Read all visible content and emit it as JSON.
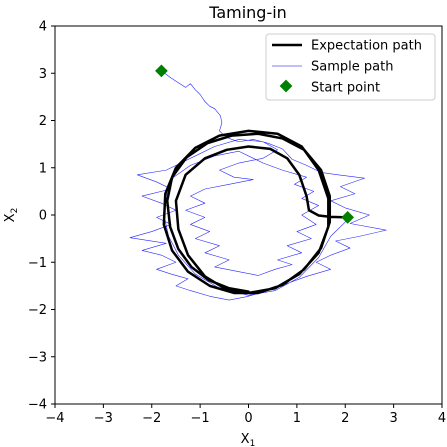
{
  "chart_data": {
    "type": "line",
    "title": "Taming-in",
    "xlabel": "X",
    "xlabel_sub": "1",
    "ylabel": "X",
    "ylabel_sub": "2",
    "xlim": [
      -4,
      4
    ],
    "ylim": [
      -4,
      4
    ],
    "xticks": [
      -4,
      -3,
      -2,
      -1,
      0,
      1,
      2,
      3,
      4
    ],
    "yticks": [
      -4,
      -3,
      -2,
      -1,
      0,
      1,
      2,
      3,
      4
    ],
    "xtick_labels": [
      "−4",
      "−3",
      "−2",
      "−1",
      "0",
      "1",
      "2",
      "3",
      "4"
    ],
    "ytick_labels": [
      "−4",
      "−3",
      "−2",
      "−1",
      "0",
      "1",
      "2",
      "3",
      "4"
    ],
    "grid": false,
    "legend_position": "top-right",
    "colors": {
      "expectation": "#000000",
      "sample": "#0000ff",
      "start": "#008000"
    },
    "series": [
      {
        "name": "Expectation path",
        "style": "solid-thick",
        "points": [
          [
            2.05,
            -0.05
          ],
          [
            1.7,
            -0.04
          ],
          [
            1.45,
            -0.01
          ],
          [
            1.25,
            0.1
          ],
          [
            1.2,
            0.4
          ],
          [
            1.05,
            0.85
          ],
          [
            0.8,
            1.2
          ],
          [
            0.45,
            1.4
          ],
          [
            0.0,
            1.45
          ],
          [
            -0.45,
            1.38
          ],
          [
            -0.9,
            1.2
          ],
          [
            -1.3,
            0.85
          ],
          [
            -1.5,
            0.3
          ],
          [
            -1.45,
            -0.3
          ],
          [
            -1.25,
            -0.85
          ],
          [
            -0.9,
            -1.3
          ],
          [
            -0.45,
            -1.58
          ],
          [
            0.0,
            -1.65
          ],
          [
            0.55,
            -1.55
          ],
          [
            1.05,
            -1.25
          ],
          [
            1.45,
            -0.8
          ],
          [
            1.65,
            -0.25
          ],
          [
            1.65,
            0.35
          ],
          [
            1.45,
            0.95
          ],
          [
            1.1,
            1.45
          ],
          [
            0.6,
            1.72
          ],
          [
            0.0,
            1.78
          ],
          [
            -0.6,
            1.68
          ],
          [
            -1.1,
            1.42
          ],
          [
            -1.5,
            1.0
          ],
          [
            -1.72,
            0.45
          ],
          [
            -1.75,
            -0.2
          ],
          [
            -1.58,
            -0.75
          ],
          [
            -1.25,
            -1.2
          ],
          [
            -0.8,
            -1.5
          ],
          [
            -0.3,
            -1.65
          ],
          [
            0.2,
            -1.65
          ],
          [
            0.7,
            -1.48
          ],
          [
            1.15,
            -1.15
          ],
          [
            1.5,
            -0.7
          ],
          [
            1.68,
            -0.15
          ],
          [
            1.68,
            0.4
          ],
          [
            1.5,
            0.95
          ],
          [
            1.15,
            1.38
          ],
          [
            0.7,
            1.62
          ],
          [
            0.2,
            1.72
          ],
          [
            -0.35,
            1.68
          ],
          [
            -0.85,
            1.52
          ],
          [
            -1.28,
            1.22
          ],
          [
            -1.58,
            0.8
          ],
          [
            -1.68,
            0.3
          ],
          [
            -1.62,
            -0.25
          ],
          [
            -1.45,
            -0.72
          ],
          [
            -1.18,
            -1.1
          ],
          [
            -0.82,
            -1.38
          ],
          [
            -0.4,
            -1.55
          ],
          [
            0.0,
            -1.62
          ]
        ]
      },
      {
        "name": "Sample path",
        "style": "thin",
        "points": [
          [
            -1.8,
            3.05
          ],
          [
            -1.6,
            2.9
          ],
          [
            -1.45,
            2.8
          ],
          [
            -1.3,
            2.7
          ],
          [
            -1.2,
            2.78
          ],
          [
            -1.1,
            2.65
          ],
          [
            -1.0,
            2.55
          ],
          [
            -0.9,
            2.4
          ],
          [
            -0.8,
            2.3
          ],
          [
            -0.7,
            2.25
          ],
          [
            -0.58,
            2.1
          ],
          [
            -0.55,
            1.95
          ],
          [
            -0.6,
            1.78
          ],
          [
            -0.52,
            1.7
          ],
          [
            -0.4,
            1.62
          ],
          [
            -0.2,
            1.55
          ],
          [
            0.1,
            1.6
          ],
          [
            0.4,
            1.52
          ],
          [
            0.7,
            1.4
          ],
          [
            0.9,
            1.18
          ],
          [
            1.2,
            1.05
          ],
          [
            1.5,
            0.9
          ],
          [
            1.85,
            0.85
          ],
          [
            2.4,
            0.78
          ],
          [
            1.9,
            0.6
          ],
          [
            2.2,
            0.45
          ],
          [
            1.7,
            0.3
          ],
          [
            2.0,
            0.15
          ],
          [
            2.5,
            0.0
          ],
          [
            2.1,
            -0.18
          ],
          [
            2.85,
            -0.32
          ],
          [
            2.3,
            -0.45
          ],
          [
            1.8,
            -0.55
          ],
          [
            2.1,
            -0.7
          ],
          [
            1.7,
            -0.85
          ],
          [
            1.4,
            -1.0
          ],
          [
            1.7,
            -1.15
          ],
          [
            1.2,
            -1.3
          ],
          [
            0.8,
            -1.45
          ],
          [
            0.4,
            -1.6
          ],
          [
            0.0,
            -1.72
          ],
          [
            -0.4,
            -1.8
          ],
          [
            -0.8,
            -1.72
          ],
          [
            -1.2,
            -1.6
          ],
          [
            -1.5,
            -1.5
          ],
          [
            -1.25,
            -1.35
          ],
          [
            -1.6,
            -1.25
          ],
          [
            -1.9,
            -1.15
          ],
          [
            -1.5,
            -1.0
          ],
          [
            -1.8,
            -0.85
          ],
          [
            -2.2,
            -0.75
          ],
          [
            -1.7,
            -0.6
          ],
          [
            -2.45,
            -0.48
          ],
          [
            -2.0,
            -0.35
          ],
          [
            -1.6,
            -0.2
          ],
          [
            -1.9,
            -0.05
          ],
          [
            -1.5,
            0.1
          ],
          [
            -1.8,
            0.25
          ],
          [
            -2.2,
            0.4
          ],
          [
            -1.6,
            0.55
          ],
          [
            -1.9,
            0.7
          ],
          [
            -2.3,
            0.85
          ],
          [
            -1.7,
            0.95
          ],
          [
            -1.4,
            1.1
          ],
          [
            -1.1,
            1.25
          ],
          [
            -0.7,
            1.45
          ],
          [
            -0.2,
            1.6
          ],
          [
            0.3,
            1.55
          ],
          [
            0.6,
            1.38
          ],
          [
            0.3,
            1.2
          ],
          [
            -0.2,
            1.1
          ],
          [
            -0.6,
            0.95
          ],
          [
            -0.3,
            0.8
          ],
          [
            0.1,
            0.75
          ],
          [
            -0.4,
            0.65
          ],
          [
            -0.9,
            0.55
          ],
          [
            -1.2,
            0.4
          ],
          [
            -0.9,
            0.25
          ],
          [
            -1.3,
            0.1
          ],
          [
            -0.9,
            -0.05
          ],
          [
            -1.2,
            -0.2
          ],
          [
            -0.8,
            -0.35
          ],
          [
            -1.1,
            -0.5
          ],
          [
            -0.6,
            -0.65
          ],
          [
            -0.9,
            -0.8
          ],
          [
            -0.4,
            -0.95
          ],
          [
            -0.7,
            -1.1
          ],
          [
            -0.2,
            -1.2
          ],
          [
            0.2,
            -1.28
          ],
          [
            0.55,
            -1.15
          ],
          [
            0.9,
            -1.05
          ],
          [
            0.6,
            -0.95
          ],
          [
            1.1,
            -0.8
          ],
          [
            0.8,
            -0.65
          ],
          [
            1.3,
            -0.5
          ],
          [
            1.0,
            -0.35
          ],
          [
            1.4,
            -0.2
          ],
          [
            1.1,
            0.0
          ],
          [
            1.45,
            0.2
          ],
          [
            1.1,
            0.35
          ],
          [
            1.35,
            0.5
          ],
          [
            0.95,
            0.65
          ],
          [
            1.2,
            0.8
          ],
          [
            0.7,
            0.95
          ],
          [
            0.3,
            1.1
          ],
          [
            -0.2,
            1.35
          ],
          [
            -0.7,
            1.25
          ],
          [
            -1.2,
            1.05
          ],
          [
            -1.55,
            0.8
          ],
          [
            -1.7,
            0.4
          ],
          [
            -1.75,
            0.0
          ],
          [
            -1.65,
            -0.45
          ],
          [
            -1.45,
            -0.85
          ],
          [
            -1.1,
            -1.25
          ],
          [
            -0.6,
            -1.55
          ],
          [
            0.0,
            -1.7
          ],
          [
            0.55,
            -1.6
          ],
          [
            1.05,
            -1.32
          ],
          [
            1.45,
            -0.9
          ],
          [
            1.7,
            -0.45
          ],
          [
            2.0,
            -0.15
          ],
          [
            2.05,
            -0.05
          ]
        ]
      }
    ],
    "markers": [
      {
        "name": "Start point",
        "points": [
          [
            -1.8,
            3.05
          ],
          [
            2.05,
            -0.05
          ]
        ]
      }
    ],
    "legend": [
      "Expectation path",
      "Sample path",
      "Start point"
    ]
  }
}
